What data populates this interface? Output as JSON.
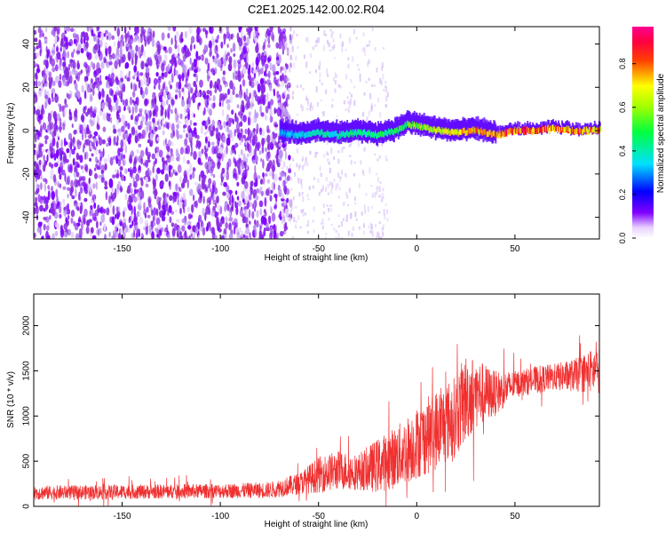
{
  "title": "C2E1.2025.142.00.02.R04",
  "colors": {
    "snr_line": "#f03030",
    "frame": "#000000",
    "background": "#ffffff"
  },
  "chart_data": [
    {
      "type": "heatmap",
      "xlabel": "Height of straight line (km)",
      "ylabel": "Frequency (Hz)",
      "xlim": [
        -195,
        93
      ],
      "ylim": [
        -50,
        48
      ],
      "xticks": [
        -150,
        -100,
        -50,
        0,
        50
      ],
      "yticks": [
        -40,
        -20,
        0,
        20,
        40
      ],
      "colorbar": {
        "label": "Normalized spectral amplitude",
        "colormap": "rainbow (white-purple-blue-cyan-green-yellow-red-magenta)",
        "ticks": [
          0.0,
          0.2,
          0.4,
          0.6,
          0.8
        ],
        "range": [
          0.0,
          0.97
        ]
      },
      "ridge": {
        "description_values": "frequency of peak spectral amplitude vs height",
        "x": [
          -70,
          -60,
          -50,
          -40,
          -30,
          -20,
          -10,
          -5,
          0,
          10,
          20,
          30,
          40,
          50,
          60,
          70,
          80,
          90
        ],
        "y": [
          -1,
          -2,
          -1,
          -2,
          -1,
          -2,
          0,
          3,
          2,
          0,
          -1,
          0,
          -2,
          0,
          0,
          1,
          0,
          0
        ],
        "amplitude": [
          0.35,
          0.4,
          0.45,
          0.45,
          0.5,
          0.5,
          0.55,
          0.6,
          0.65,
          0.75,
          0.8,
          0.85,
          0.9,
          0.92,
          0.9,
          0.88,
          0.9,
          0.85
        ]
      },
      "noise_region_x": [
        -195,
        -70
      ]
    },
    {
      "type": "line",
      "xlabel": "Height of straight line (km)",
      "ylabel": "SNR (10 * v/v)",
      "xlim": [
        -195,
        93
      ],
      "ylim": [
        0,
        2350
      ],
      "xticks": [
        -150,
        -100,
        -50,
        0,
        50
      ],
      "yticks": [
        0,
        500,
        1000,
        1500,
        2000
      ],
      "envelope": {
        "x": [
          -195,
          -150,
          -100,
          -75,
          -60,
          -50,
          -40,
          -30,
          -20,
          -10,
          0,
          10,
          20,
          25,
          30,
          40,
          50,
          60,
          70,
          80,
          90
        ],
        "mean": [
          150,
          160,
          170,
          180,
          250,
          350,
          400,
          380,
          450,
          550,
          700,
          850,
          1000,
          1200,
          1250,
          1250,
          1350,
          1400,
          1430,
          1450,
          1500
        ],
        "spread": [
          80,
          80,
          80,
          90,
          120,
          200,
          220,
          200,
          300,
          350,
          400,
          450,
          450,
          500,
          400,
          250,
          150,
          150,
          150,
          180,
          250
        ]
      }
    }
  ]
}
